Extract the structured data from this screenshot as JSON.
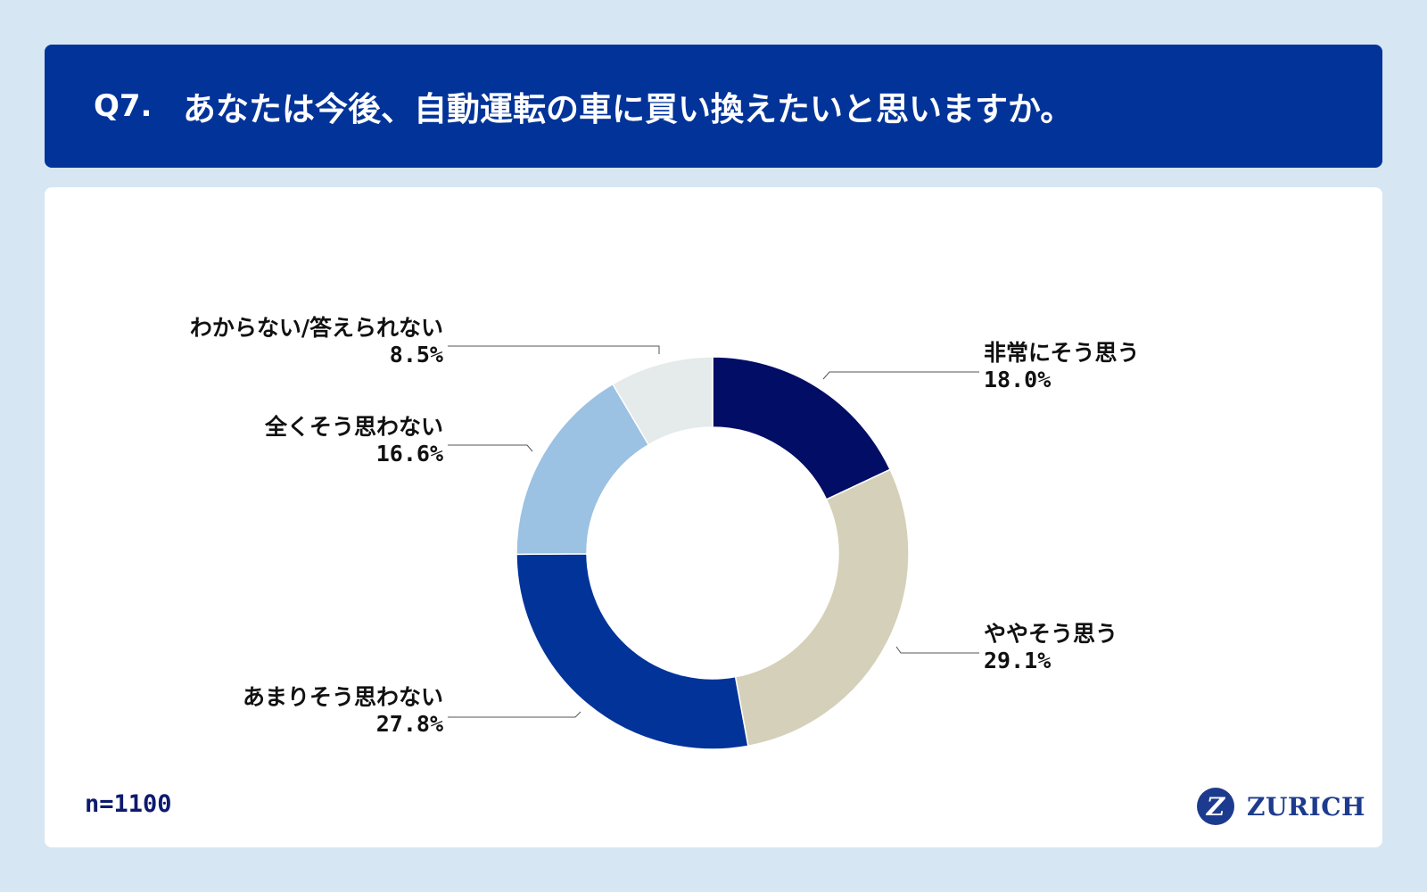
{
  "header": {
    "question_number": "Q7.",
    "question_text": "あなたは今後、自動運転の車に買い換えたいと思いますか。"
  },
  "footer": {
    "sample_size": "n=1100",
    "brand_mark": "Z",
    "brand_name": "ZURICH"
  },
  "colors": {
    "background": "#d6e6f3",
    "header": "#023399"
  },
  "chart_data": {
    "type": "pie",
    "subtype": "donut",
    "start": "12 o'clock, clockwise",
    "slices": [
      {
        "label": "非常にそう思う",
        "value": 18.0,
        "display": "18.0%",
        "color": "#020d66"
      },
      {
        "label": "ややそう思う",
        "value": 29.1,
        "display": "29.1%",
        "color": "#d5d0b9"
      },
      {
        "label": "あまりそう思わない",
        "value": 27.8,
        "display": "27.8%",
        "color": "#023399"
      },
      {
        "label": "全くそう思わない",
        "value": 16.6,
        "display": "16.6%",
        "color": "#9bc1e3"
      },
      {
        "label": "わからない/答えられない",
        "value": 8.5,
        "display": "8.5%",
        "color": "#e5eaea"
      }
    ]
  }
}
